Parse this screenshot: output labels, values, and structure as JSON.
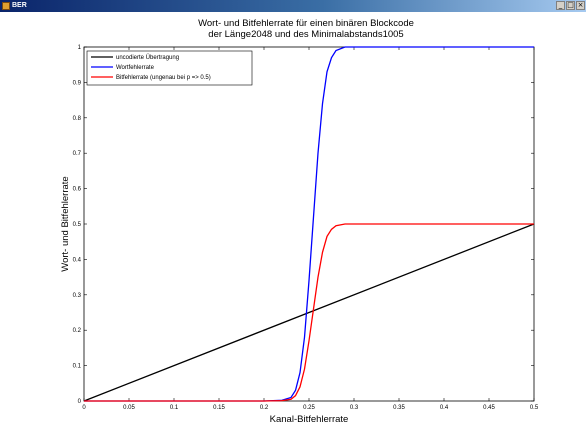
{
  "window": {
    "title": "BER",
    "buttons": [
      "_",
      "□",
      "×"
    ]
  },
  "chart_data": {
    "type": "line",
    "title": "Wort- und Bitfehlerrate für einen binären Blockcode",
    "subtitle": "der Länge2048 und des Minimalabstands1005",
    "xlabel": "Kanal-Bitfehlerrate",
    "ylabel": "Wort- und Bitfehlerrate",
    "xlim": [
      0,
      0.5
    ],
    "ylim": [
      0,
      1
    ],
    "xticks": [
      0,
      0.05,
      0.1,
      0.15,
      0.2,
      0.25,
      0.3,
      0.35,
      0.4,
      0.45,
      0.5
    ],
    "xtick_labels": [
      "0",
      "0.05",
      "0.1",
      "0.15",
      "0.2",
      "0.25",
      "0.3",
      "0.35",
      "0.4",
      "0.45",
      "0.5"
    ],
    "yticks": [
      0,
      0.1,
      0.2,
      0.3,
      0.4,
      0.5,
      0.6,
      0.7,
      0.8,
      0.9,
      1
    ],
    "ytick_labels": [
      "0",
      "0.1",
      "0.2",
      "0.3",
      "0.4",
      "0.5",
      "0.6",
      "0.7",
      "0.8",
      "0.9",
      "1"
    ],
    "grid": false,
    "legend_position": "top-left",
    "series": [
      {
        "name": "uncodierte Übertragung",
        "color": "#000000",
        "x": [
          0,
          0.5
        ],
        "y": [
          0,
          0.5
        ]
      },
      {
        "name": "Wortfehlerrate",
        "color": "#0000ff",
        "x": [
          0,
          0.2,
          0.22,
          0.23,
          0.235,
          0.24,
          0.245,
          0.25,
          0.255,
          0.26,
          0.265,
          0.27,
          0.275,
          0.28,
          0.29,
          0.3,
          0.5
        ],
        "y": [
          0,
          0,
          0.002,
          0.01,
          0.03,
          0.08,
          0.18,
          0.34,
          0.52,
          0.7,
          0.84,
          0.93,
          0.97,
          0.99,
          1,
          1,
          1
        ]
      },
      {
        "name": "Bitfehlerrate (ungenau bei p => 0.5)",
        "color": "#ff0000",
        "x": [
          0,
          0.2,
          0.22,
          0.23,
          0.235,
          0.24,
          0.245,
          0.25,
          0.255,
          0.26,
          0.265,
          0.27,
          0.275,
          0.28,
          0.29,
          0.3,
          0.5
        ],
        "y": [
          0,
          0,
          0.001,
          0.005,
          0.015,
          0.04,
          0.09,
          0.17,
          0.26,
          0.35,
          0.42,
          0.465,
          0.485,
          0.495,
          0.5,
          0.5,
          0.5
        ]
      }
    ]
  }
}
